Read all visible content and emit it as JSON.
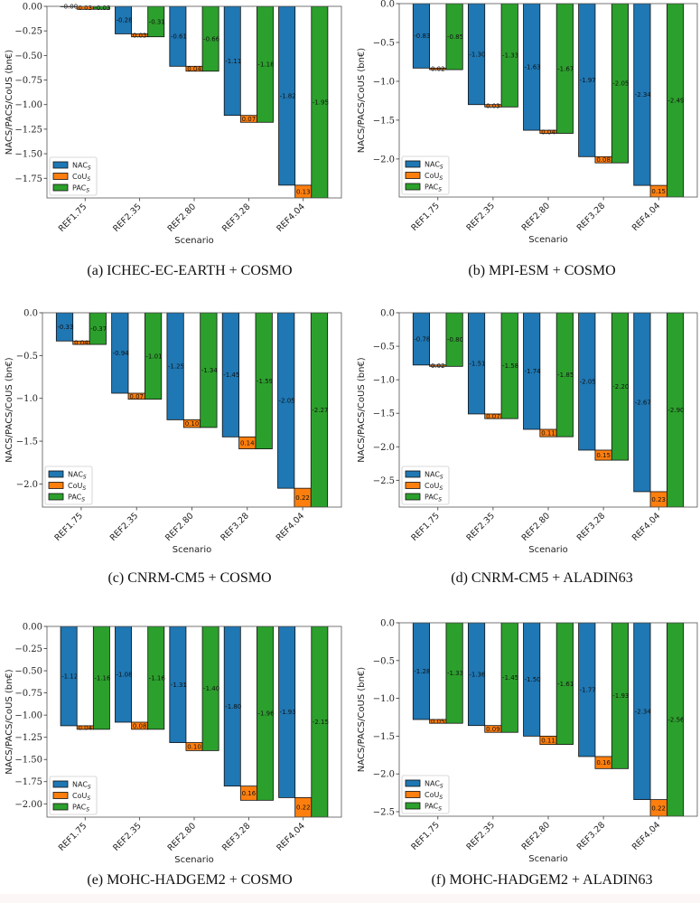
{
  "colors": {
    "NAC": "#1f77b4",
    "CoU": "#ff7f0e",
    "PAC": "#2ca02c"
  },
  "chart_data": [
    {
      "type": "bar",
      "id": "a",
      "caption": "(a) ICHEC-EC-EARTH + COSMO",
      "xlabel": "Scenario",
      "ylabel": "NACS/PACS/CoUS (bn€)",
      "categories": [
        "REF1.75",
        "REF2.35",
        "REF2.80",
        "REF3.28",
        "REF4.04"
      ],
      "series": [
        {
          "name": "NACS",
          "values": [
            0.0,
            -0.28,
            -0.61,
            -1.11,
            -1.82
          ]
        },
        {
          "name": "CoUS",
          "values": [
            0.03,
            0.03,
            0.04,
            0.07,
            0.13
          ]
        },
        {
          "name": "PACS",
          "values": [
            -0.03,
            -0.31,
            -0.66,
            -1.18,
            -1.95
          ]
        }
      ],
      "bar_labels": {
        "NACS": [
          "-0.00",
          "-0.28",
          "-0.61",
          "-1.11",
          "-1.82"
        ],
        "CoUS": [
          "0.03",
          "0.03",
          "0.04",
          "0.07",
          "0.13"
        ],
        "PACS": [
          "-0.03",
          "-0.31",
          "-0.66",
          "-1.18",
          "-1.95"
        ]
      },
      "ylim": [
        -1.95,
        0
      ],
      "yticks": [
        0,
        -0.25,
        -0.5,
        -0.75,
        -1.0,
        -1.25,
        -1.5,
        -1.75
      ],
      "ytick_labels": [
        "0.00",
        "−0.25",
        "−0.50",
        "−0.75",
        "−1.00",
        "−1.25",
        "−1.50",
        "−1.75"
      ],
      "legend": [
        "NACS",
        "CoUS",
        "PACS"
      ],
      "legend_position": "lower-left",
      "grid": false
    },
    {
      "type": "bar",
      "id": "b",
      "caption": "(b) MPI-ESM + COSMO",
      "xlabel": "Scenario",
      "ylabel": "NACS/PACS/CoUS (bn€)",
      "categories": [
        "REF1.75",
        "REF2.35",
        "REF2.80",
        "REF3.28",
        "REF4.04"
      ],
      "series": [
        {
          "name": "NACS",
          "values": [
            -0.83,
            -1.3,
            -1.63,
            -1.97,
            -2.34
          ]
        },
        {
          "name": "CoUS",
          "values": [
            0.02,
            0.03,
            0.04,
            0.08,
            0.15
          ]
        },
        {
          "name": "PACS",
          "values": [
            -0.85,
            -1.33,
            -1.67,
            -2.05,
            -2.49
          ]
        }
      ],
      "bar_labels": {
        "NACS": [
          "-0.83",
          "-1.30",
          "-1.63",
          "-1.97",
          "-2.34"
        ],
        "CoUS": [
          "0.02",
          "0.03",
          "0.04",
          "0.08",
          "0.15"
        ],
        "PACS": [
          "-0.85",
          "-1.33",
          "-1.67",
          "-2.05",
          "-2.49"
        ]
      },
      "ylim": [
        -2.49,
        0
      ],
      "yticks": [
        0,
        -0.5,
        -1.0,
        -1.5,
        -2.0
      ],
      "ytick_labels": [
        "0.0",
        "−0.5",
        "−1.0",
        "−1.5",
        "−2.0"
      ],
      "legend": [
        "NACS",
        "CoUS",
        "PACS"
      ],
      "legend_position": "lower-left",
      "grid": false
    },
    {
      "type": "bar",
      "id": "c",
      "caption": "(c) CNRM-CM5 + COSMO",
      "xlabel": "Scenario",
      "ylabel": "NACS/PACS/CoUS (bn€)",
      "categories": [
        "REF1.75",
        "REF2.35",
        "REF2.80",
        "REF3.28",
        "REF4.04"
      ],
      "series": [
        {
          "name": "NACS",
          "values": [
            -0.33,
            -0.94,
            -1.25,
            -1.45,
            -2.05
          ]
        },
        {
          "name": "CoUS",
          "values": [
            0.04,
            0.07,
            0.1,
            0.14,
            0.22
          ]
        },
        {
          "name": "PACS",
          "values": [
            -0.37,
            -1.01,
            -1.34,
            -1.59,
            -2.27
          ]
        }
      ],
      "bar_labels": {
        "NACS": [
          "-0.33",
          "-0.94",
          "-1.25",
          "-1.45",
          "-2.05"
        ],
        "CoUS": [
          "0.04",
          "0.07",
          "0.10",
          "0.14",
          "0.22"
        ],
        "PACS": [
          "-0.37",
          "-1.01",
          "-1.34",
          "-1.59",
          "-2.27"
        ]
      },
      "ylim": [
        -2.27,
        0
      ],
      "yticks": [
        0,
        -0.5,
        -1.0,
        -1.5,
        -2.0
      ],
      "ytick_labels": [
        "0.0",
        "−0.5",
        "−1.0",
        "−1.5",
        "−2.0"
      ],
      "legend": [
        "NACS",
        "CoUS",
        "PACS"
      ],
      "legend_position": "lower-left",
      "grid": false
    },
    {
      "type": "bar",
      "id": "d",
      "caption": "(d) CNRM-CM5 + ALADIN63",
      "xlabel": "Scenario",
      "ylabel": "NACS/PACS/CoUS (bn€)",
      "categories": [
        "REF1.75",
        "REF2.35",
        "REF2.80",
        "REF3.28",
        "REF4.04"
      ],
      "series": [
        {
          "name": "NACS",
          "values": [
            -0.78,
            -1.51,
            -1.74,
            -2.05,
            -2.67
          ]
        },
        {
          "name": "CoUS",
          "values": [
            0.02,
            0.07,
            0.11,
            0.15,
            0.23
          ]
        },
        {
          "name": "PACS",
          "values": [
            -0.8,
            -1.58,
            -1.85,
            -2.2,
            -2.9
          ]
        }
      ],
      "bar_labels": {
        "NACS": [
          "-0.78",
          "-1.51",
          "-1.74",
          "-2.05",
          "-2.67"
        ],
        "CoUS": [
          "0.02",
          "0.07",
          "0.11",
          "0.15",
          "0.23"
        ],
        "PACS": [
          "-0.80",
          "-1.58",
          "-1.85",
          "-2.20",
          "-2.90"
        ]
      },
      "ylim": [
        -2.9,
        0
      ],
      "yticks": [
        0,
        -0.5,
        -1.0,
        -1.5,
        -2.0,
        -2.5
      ],
      "ytick_labels": [
        "0.0",
        "−0.5",
        "−1.0",
        "−1.5",
        "−2.0",
        "−2.5"
      ],
      "legend": [
        "NACS",
        "CoUS",
        "PACS"
      ],
      "legend_position": "lower-left",
      "grid": false
    },
    {
      "type": "bar",
      "id": "e",
      "caption": "(e) MOHC-HADGEM2 + COSMO",
      "xlabel": "Scenario",
      "ylabel": "NACS/PACS/CoUS (bn€)",
      "categories": [
        "REF1.75",
        "REF2.35",
        "REF2.80",
        "REF3.28",
        "REF4.04"
      ],
      "series": [
        {
          "name": "NACS",
          "values": [
            -1.12,
            -1.08,
            -1.31,
            -1.8,
            -1.93
          ]
        },
        {
          "name": "CoUS",
          "values": [
            0.04,
            0.08,
            0.1,
            0.16,
            0.22
          ]
        },
        {
          "name": "PACS",
          "values": [
            -1.16,
            -1.16,
            -1.4,
            -1.96,
            -2.15
          ]
        }
      ],
      "bar_labels": {
        "NACS": [
          "-1.12",
          "-1.08",
          "-1.31",
          "-1.80",
          "-1.93"
        ],
        "CoUS": [
          "0.04",
          "0.08",
          "0.10",
          "0.16",
          "0.22"
        ],
        "PACS": [
          "-1.16",
          "-1.16",
          "-1.40",
          "-1.96",
          "-2.15"
        ]
      },
      "ylim": [
        -2.15,
        0
      ],
      "yticks": [
        0,
        -0.25,
        -0.5,
        -0.75,
        -1.0,
        -1.25,
        -1.5,
        -1.75,
        -2.0
      ],
      "ytick_labels": [
        "0.00",
        "−0.25",
        "−0.50",
        "−0.75",
        "−1.00",
        "−1.25",
        "−1.50",
        "−1.75",
        "−2.00"
      ],
      "legend": [
        "NACS",
        "CoUS",
        "PACS"
      ],
      "legend_position": "lower-left",
      "grid": false
    },
    {
      "type": "bar",
      "id": "f",
      "caption": "(f) MOHC-HADGEM2 + ALADIN63",
      "xlabel": "Scenario",
      "ylabel": "NACS/PACS/CoUS (bn€)",
      "categories": [
        "REF1.75",
        "REF2.35",
        "REF2.80",
        "REF3.28",
        "REF4.04"
      ],
      "series": [
        {
          "name": "NACS",
          "values": [
            -1.28,
            -1.36,
            -1.5,
            -1.77,
            -2.34
          ]
        },
        {
          "name": "CoUS",
          "values": [
            0.05,
            0.09,
            0.11,
            0.16,
            0.22
          ]
        },
        {
          "name": "PACS",
          "values": [
            -1.33,
            -1.45,
            -1.61,
            -1.93,
            -2.56
          ]
        }
      ],
      "bar_labels": {
        "NACS": [
          "-1.28",
          "-1.36",
          "-1.50",
          "-1.77",
          "-2.34"
        ],
        "CoUS": [
          "0.05",
          "0.09",
          "0.11",
          "0.16",
          "0.22"
        ],
        "PACS": [
          "-1.33",
          "-1.45",
          "-1.61",
          "-1.93",
          "-2.56"
        ]
      },
      "ylim": [
        -2.56,
        0
      ],
      "yticks": [
        0,
        -0.5,
        -1.0,
        -1.5,
        -2.0,
        -2.5
      ],
      "ytick_labels": [
        "0.0",
        "−0.5",
        "−1.0",
        "−1.5",
        "−2.0",
        "−2.5"
      ],
      "legend": [
        "NACS",
        "CoUS",
        "PACS"
      ],
      "legend_position": "lower-left",
      "grid": false
    }
  ]
}
